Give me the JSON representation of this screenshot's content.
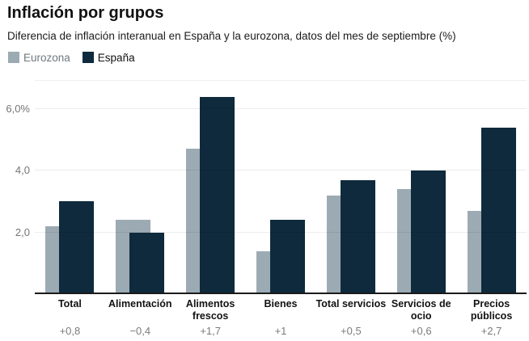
{
  "header": {
    "title": "Inflación por grupos",
    "subtitle": "Diferencia de inflación interanual en España y la eurozona, datos del mes de septiembre (%)"
  },
  "legend": {
    "items": [
      {
        "label": "Eurozona",
        "color": "#9caab3"
      },
      {
        "label": "España",
        "color": "#0e2a3c"
      }
    ]
  },
  "chart_data": {
    "type": "bar",
    "title": "Inflación por grupos",
    "subtitle": "Diferencia de inflación interanual en España y la eurozona, datos del mes de septiembre (%)",
    "categories": [
      "Total",
      "Alimentación",
      "Alimentos frescos",
      "Bienes",
      "Total servicios",
      "Servicios de ocio",
      "Precios públicos"
    ],
    "series": [
      {
        "name": "Eurozona",
        "color": "#9caab3",
        "values": [
          2.2,
          2.4,
          4.7,
          1.4,
          3.2,
          3.4,
          2.7
        ]
      },
      {
        "name": "España",
        "color": "#0e2a3c",
        "values": [
          3.0,
          2.0,
          6.4,
          2.4,
          3.7,
          4.0,
          5.4
        ]
      }
    ],
    "diff_labels": [
      "+0,8",
      "−0,4",
      "+1,7",
      "+1",
      "+0,5",
      "+0,6",
      "+2,7"
    ],
    "y_ticks": [
      {
        "value": 2,
        "label": "2,0"
      },
      {
        "value": 4,
        "label": "4,0"
      },
      {
        "value": 6,
        "label": "6,0%"
      }
    ],
    "ylim": [
      0,
      6.9
    ],
    "xlabel": "",
    "ylabel": "",
    "grid": true,
    "legend_position": "top-left",
    "bar_style": "overlapping"
  }
}
